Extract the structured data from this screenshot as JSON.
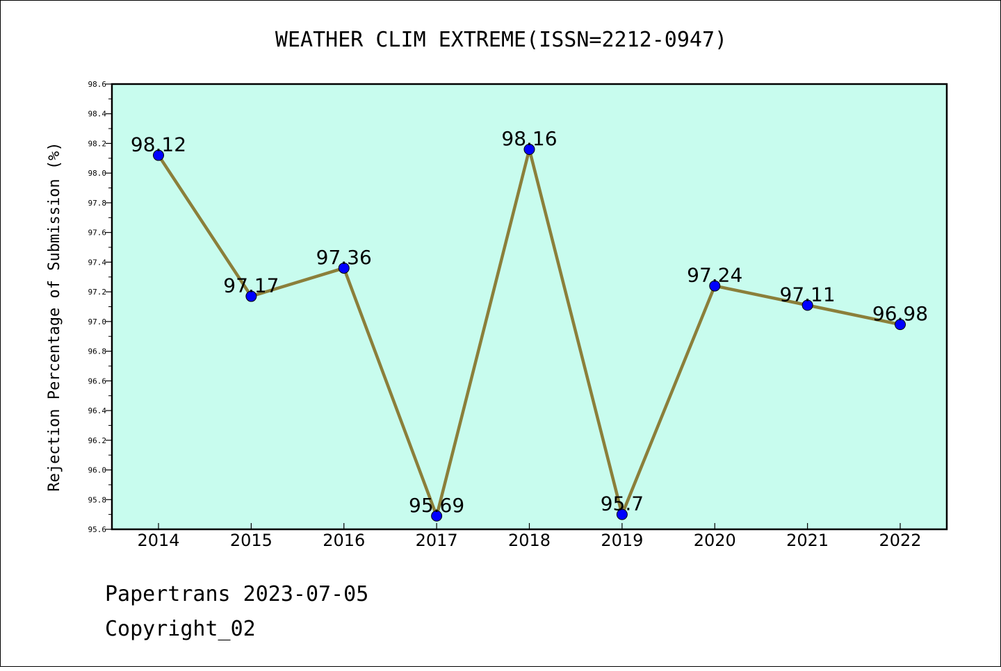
{
  "chart_data": {
    "type": "line",
    "title": "WEATHER CLIM EXTREME(ISSN=2212-0947)",
    "xlabel": "",
    "ylabel": "Rejection Percentage of Submission (%)",
    "categories": [
      "2014",
      "2015",
      "2016",
      "2017",
      "2018",
      "2019",
      "2020",
      "2021",
      "2022"
    ],
    "series": [
      {
        "values": [
          98.12,
          97.17,
          97.36,
          95.69,
          98.16,
          95.7,
          97.24,
          97.11,
          96.98
        ],
        "labels": [
          "98.12",
          "97.17",
          "97.36",
          "95.69",
          "98.16",
          "95.7",
          "97.24",
          "97.11",
          "96.98"
        ]
      }
    ],
    "ylim": [
      95.6,
      98.6
    ],
    "yticks": [
      "95.6",
      "95.8",
      "96.0",
      "96.2",
      "96.4",
      "96.6",
      "96.8",
      "97.0",
      "97.2",
      "97.4",
      "97.6",
      "97.8",
      "98.0",
      "98.2",
      "98.4",
      "98.6"
    ],
    "grid": false,
    "colors": {
      "plot_background": "#c8fcee",
      "line": "#8b7f3a",
      "marker": "#0000ff"
    }
  },
  "footer": {
    "line1": "Papertrans 2023-07-05",
    "line2": "Copyright_02"
  }
}
